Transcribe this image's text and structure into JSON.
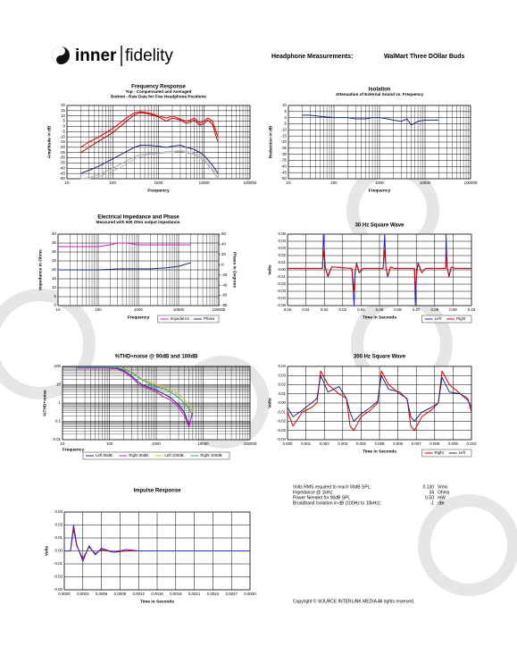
{
  "header": {
    "logo_left": "inner",
    "logo_right": "fidelity",
    "heading": "Headphone Measurements:",
    "product": "WalMart Three DOllar Buds"
  },
  "stats": [
    [
      "Volts RMS required to reach 90dB SPL:",
      "0.130",
      "Vrms"
    ],
    [
      "Impedance @ 1kHz:",
      "34",
      "Ohms"
    ],
    [
      "Power Needed for 90dB SPL",
      "0.50",
      "mW"
    ],
    [
      "Broadband Isolation in dB (100Hz to 10kHz):",
      "-1",
      "dBr"
    ]
  ],
  "footer": {
    "copyright": "Copyright © SOURCE INTERLINK MEDIA All rights reserved."
  },
  "chart_data": [
    {
      "type": "line",
      "title": "Frequency Response",
      "subtitle": [
        "Top - Compensated and Averaged",
        "Bottom - Raw Data for Five Headphone Positions"
      ],
      "xlabel": "Frequency",
      "ylabel": "Amplitude in dB",
      "xscale": "log",
      "grid": true,
      "xlim": [
        10,
        100000
      ],
      "xticks": [
        10,
        100,
        1000,
        10000,
        100000
      ],
      "ylim": [
        -50,
        20
      ],
      "yticks": [
        20,
        15,
        10,
        5,
        0,
        -5,
        -10,
        -15,
        -20,
        -25,
        -30,
        -35,
        -40,
        -45,
        -50
      ],
      "x": [
        20,
        30,
        50,
        100,
        200,
        300,
        400,
        600,
        1000,
        1500,
        2000,
        3000,
        4000,
        5000,
        6000,
        8000,
        10000,
        12000,
        15000,
        20000
      ],
      "series": [
        {
          "color": "#aaaaaa",
          "values": [
            -50,
            -49,
            -46,
            -40,
            -33,
            -29,
            -27,
            -26,
            -26,
            -25,
            -25,
            -24,
            -25,
            -26,
            -27,
            -30,
            -33,
            -37,
            -42,
            -50
          ]
        },
        {
          "color": "#b8b8b8",
          "values": [
            -50,
            -50,
            -48,
            -43,
            -36,
            -31,
            -29,
            -27,
            -26,
            -24,
            -24,
            -23,
            -24,
            -25,
            -26,
            -28,
            -31,
            -35,
            -40,
            -50
          ]
        },
        {
          "color": "#1f2a7a",
          "values": [
            -45,
            -42,
            -38,
            -31,
            -24,
            -20,
            -18,
            -18,
            -19,
            -20,
            -19,
            -18,
            -20,
            -21,
            -22,
            -25,
            -28,
            -32,
            -37,
            -45
          ]
        },
        {
          "color": "#e00000",
          "values": [
            -20,
            -15,
            -10,
            -2,
            8,
            13,
            14,
            13,
            10,
            8,
            10,
            7,
            5,
            6,
            8,
            3,
            5,
            8,
            5,
            -10
          ]
        },
        {
          "color": "#cc0000",
          "values": [
            -25,
            -20,
            -14,
            -6,
            5,
            11,
            13,
            12,
            9,
            5,
            8,
            6,
            3,
            4,
            6,
            1,
            3,
            6,
            2,
            -15
          ]
        }
      ]
    },
    {
      "type": "line",
      "title": "Isolation",
      "subtitle": [
        "Attenuation of External Sound vs. Frequency"
      ],
      "xlabel": "Frequency",
      "ylabel": "Reduction in dB",
      "xscale": "log",
      "grid": true,
      "xlim": [
        10,
        100000
      ],
      "xticks": [
        10,
        100,
        1000,
        10000,
        100000
      ],
      "ylim": [
        -50,
        10
      ],
      "yticks": [
        10,
        5,
        0,
        -5,
        -10,
        -15,
        -20,
        -25,
        -30,
        -35,
        -40,
        -45,
        -50
      ],
      "x": [
        20,
        30,
        50,
        100,
        200,
        300,
        500,
        700,
        1000,
        1500,
        2000,
        3000,
        4000,
        5000,
        7000,
        10000,
        15000,
        20000
      ],
      "series": [
        {
          "color": "#1f2a7a",
          "values": [
            2,
            2,
            1,
            0,
            0,
            -1,
            -1,
            0,
            0,
            -1,
            -2,
            -3,
            -1,
            -6,
            -3,
            -2,
            -2,
            -2
          ]
        }
      ]
    },
    {
      "type": "line",
      "title": "Electrical Impedance and Phase",
      "subtitle": [
        "Measured with 600 Ohm output impedance."
      ],
      "xlabel": "Frequency",
      "ylabel": "Impedance in Ohms",
      "y2label": "Phase in Degrees",
      "xscale": "log",
      "grid": true,
      "legend": "bottom-right",
      "xlim": [
        10,
        100000
      ],
      "xticks": [
        10,
        100,
        1000,
        10000,
        100000
      ],
      "ylim": [
        0,
        40
      ],
      "yticks": [
        40,
        35,
        30,
        25,
        20,
        15,
        10,
        5,
        0
      ],
      "y2lim": [
        -80,
        60
      ],
      "y2ticks": [
        60,
        40,
        20,
        0,
        -20,
        -40,
        -60,
        -80
      ],
      "x": [
        10,
        20,
        50,
        100,
        200,
        300,
        500,
        1000,
        2000,
        5000,
        10000,
        20000
      ],
      "series": [
        {
          "name": "Impedance",
          "color": "#d020c0",
          "values": [
            33,
            33,
            33,
            33,
            34,
            35,
            35,
            34,
            34,
            34,
            34,
            34
          ]
        },
        {
          "name": "Phase",
          "color": "#1f2a7a",
          "axis": "y2",
          "values": [
            -10,
            -10,
            -10,
            -10,
            -9,
            -8,
            -8,
            -8,
            -8,
            -6,
            -3,
            4
          ]
        }
      ]
    },
    {
      "type": "line",
      "title": "30 Hz Square Wave",
      "xlabel": "Time in Seconds",
      "ylabel": "Volts",
      "grid": true,
      "legend": "bottom-right",
      "xlim": [
        0,
        0.1
      ],
      "xticks": [
        {
          "value": 0,
          "label": "0.00"
        },
        0.01,
        0.02,
        0.03,
        0.04,
        0.05,
        0.06,
        0.07,
        0.08,
        0.09,
        {
          "value": 0.1,
          "label": "0.10"
        }
      ],
      "ylim": [
        -0.05,
        0.05
      ],
      "yticks": [
        0.05,
        0.04,
        0.03,
        0.02,
        0.01,
        {
          "value": 0,
          "label": "0.00"
        },
        -0.01,
        -0.02,
        -0.03,
        -0.04,
        -0.05
      ],
      "x": [
        0,
        0.01,
        0.019,
        0.0195,
        0.0205,
        0.022,
        0.024,
        0.035,
        0.0362,
        0.0368,
        0.0375,
        0.039,
        0.041,
        0.052,
        0.0528,
        0.0535,
        0.0545,
        0.056,
        0.058,
        0.069,
        0.0695,
        0.0702,
        0.071,
        0.073,
        0.075,
        0.086,
        0.0862,
        0.0868,
        0.0878,
        0.089,
        0.091,
        0.1
      ],
      "series": [
        {
          "name": "Left",
          "color": "#1f2ad0",
          "values": [
            0.002,
            0.002,
            0.002,
            0.05,
            0.004,
            -0.01,
            0.004,
            0.002,
            -0.05,
            -0.004,
            0.01,
            -0.004,
            0.002,
            0.002,
            0.05,
            0.004,
            -0.01,
            0.004,
            0.002,
            0.002,
            -0.05,
            -0.004,
            0.01,
            -0.004,
            0.002,
            0.002,
            0.05,
            0.004,
            -0.01,
            0.004,
            0.002,
            0.002
          ]
        },
        {
          "name": "Right",
          "color": "#e00000",
          "values": [
            0.002,
            0.002,
            0.002,
            0.028,
            0.003,
            -0.008,
            0.004,
            0.002,
            -0.03,
            -0.002,
            0.008,
            -0.004,
            0.002,
            0.002,
            0.028,
            0.003,
            -0.008,
            0.004,
            0.002,
            0.002,
            -0.03,
            -0.002,
            0.008,
            -0.004,
            0.002,
            0.002,
            0.028,
            0.003,
            -0.008,
            0.004,
            0.002,
            0.002
          ]
        }
      ]
    },
    {
      "type": "line",
      "title": "%THD+noise @ 90dB and 100dB",
      "xlabel": "Frequency",
      "ylabel": "%THD+noise",
      "xscale": "log",
      "yscale": "log",
      "grid": true,
      "legend": "bottom",
      "xlim": [
        10,
        100000
      ],
      "xticks": [
        10,
        100,
        1000,
        10000,
        100000
      ],
      "ylim": [
        0.01,
        100
      ],
      "yticks": [
        100,
        10,
        1,
        0.1,
        0.01
      ],
      "x": [
        20,
        50,
        100,
        150,
        200,
        300,
        400,
        500,
        700,
        1000,
        1500,
        2000,
        3000,
        4000,
        5000,
        6000
      ],
      "series": [
        {
          "name": "Left 90dB",
          "color": "#1f2a7a",
          "values": [
            80,
            80,
            80,
            75,
            60,
            30,
            15,
            10,
            7,
            5,
            3,
            2,
            0.8,
            0.3,
            0.06,
            0.3
          ]
        },
        {
          "name": "Right 90dB",
          "color": "#d020c0",
          "values": [
            80,
            80,
            80,
            70,
            50,
            25,
            12,
            8,
            6,
            4,
            2,
            1.5,
            0.6,
            0.2,
            0.05,
            0.4
          ]
        },
        {
          "name": "Left 100dB",
          "color": "#e8b81a",
          "values": [
            90,
            90,
            90,
            85,
            75,
            50,
            30,
            20,
            15,
            10,
            8,
            5,
            3,
            1.5,
            0.8,
            0.3
          ]
        },
        {
          "name": "Right 100dB",
          "color": "#2aa6a0",
          "values": [
            90,
            90,
            90,
            85,
            70,
            45,
            28,
            18,
            12,
            8,
            6,
            4,
            2,
            1,
            0.5,
            0.2
          ]
        }
      ]
    },
    {
      "type": "line",
      "title": "300 Hz Square Wave",
      "xlabel": "Time in Seconds",
      "ylabel": "Volts",
      "grid": true,
      "legend": "bottom-right",
      "xlim": [
        0,
        0.01
      ],
      "xticks": [
        {
          "value": 0,
          "label": "0.000"
        },
        0.001,
        0.002,
        0.003,
        0.004,
        0.005,
        0.006,
        0.007,
        0.008,
        0.009,
        {
          "value": 0.01,
          "label": "0.010"
        }
      ],
      "ylim": [
        -0.04,
        0.04
      ],
      "yticks": [
        0.04,
        0.03,
        0.02,
        0.01,
        {
          "value": 0,
          "label": "0.00"
        },
        -0.01,
        -0.02,
        -0.03,
        -0.04
      ],
      "x": [
        0,
        0.0003,
        0.0008,
        0.0013,
        0.0016,
        0.0018,
        0.0022,
        0.0028,
        0.0032,
        0.0034,
        0.0036,
        0.004,
        0.0045,
        0.0049,
        0.0051,
        0.0055,
        0.0061,
        0.0065,
        0.0067,
        0.0069,
        0.0073,
        0.0078,
        0.0082,
        0.0084,
        0.0088,
        0.0094,
        0.0098,
        0.01
      ],
      "series": [
        {
          "name": "Right",
          "color": "#e00000",
          "values": [
            -0.01,
            -0.025,
            -0.01,
            -0.005,
            0,
            0.035,
            0.02,
            0.01,
            0.005,
            -0.025,
            -0.03,
            -0.015,
            -0.008,
            0,
            0.035,
            0.02,
            0.01,
            0.005,
            -0.025,
            -0.03,
            -0.015,
            -0.008,
            0,
            0.035,
            0.02,
            0.01,
            0.005,
            -0.01
          ]
        },
        {
          "name": "Left",
          "color": "#1f2a7a",
          "values": [
            -0.005,
            -0.015,
            -0.008,
            0,
            0.005,
            0.03,
            0.012,
            0.018,
            0.005,
            -0.01,
            -0.02,
            -0.012,
            -0.005,
            0.002,
            0.03,
            0.015,
            0.012,
            0.004,
            -0.015,
            -0.02,
            -0.01,
            -0.005,
            0,
            0.028,
            0.012,
            0.01,
            0.003,
            -0.005
          ]
        }
      ]
    },
    {
      "type": "line",
      "title": "Impulse Response",
      "xlabel": "Time in Seconds",
      "ylabel": "Volts",
      "grid": true,
      "xlim": [
        0,
        0.003
      ],
      "xticks": [
        {
          "value": 0,
          "label": "0.0000"
        },
        0.0003,
        0.0006,
        0.0009,
        0.0012,
        0.0015,
        0.0018,
        0.0021,
        0.0024,
        0.0027,
        {
          "value": 0.003,
          "label": "0.0030"
        }
      ],
      "ylim": [
        -0.03,
        0.03
      ],
      "yticks": [
        0.03,
        0.02,
        0.01,
        {
          "value": 0,
          "label": "0.00"
        },
        -0.01,
        -0.02,
        -0.03
      ],
      "x": [
        0,
        0.0001,
        0.00015,
        0.0002,
        0.0003,
        0.0004,
        0.0005,
        0.0006,
        0.0008,
        0.001,
        0.0012,
        0.0015,
        0.002,
        0.0025,
        0.003
      ],
      "series": [
        {
          "color": "#e00000",
          "values": [
            0,
            0,
            0.017,
            0.004,
            -0.006,
            0.003,
            -0.002,
            0.001,
            -0.001,
            0,
            0,
            0,
            0,
            0,
            0
          ]
        },
        {
          "color": "#2a2ad0",
          "values": [
            0,
            0,
            0.02,
            0.005,
            -0.008,
            0.004,
            -0.003,
            0.002,
            -0.001,
            0.001,
            0,
            0,
            0,
            0,
            0
          ]
        }
      ]
    }
  ]
}
